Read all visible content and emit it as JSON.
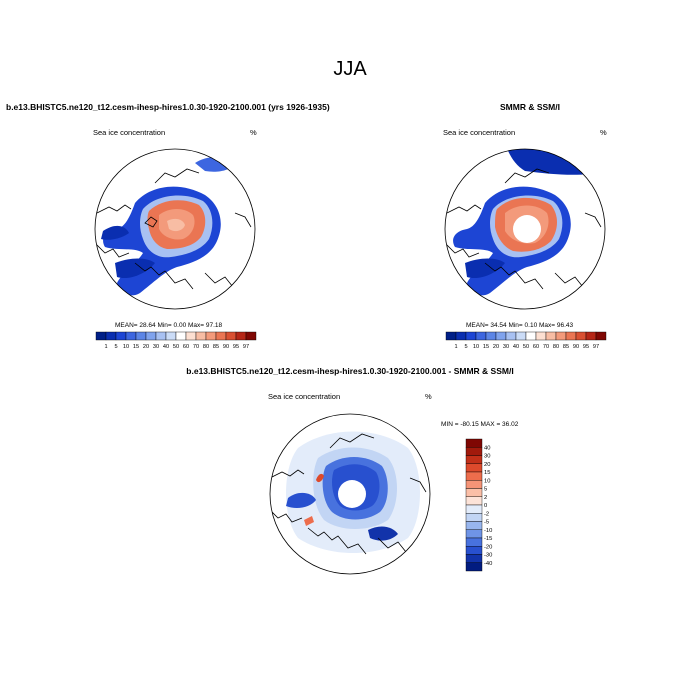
{
  "figure": {
    "season_title": "JJA",
    "model_panel_title": "b.e13.BHISTC5.ne120_t12.cesm-ihesp-hires1.0.30-1920-2100.001 (yrs 1926-1935)",
    "obs_panel_title": "SMMR & SSM/I",
    "diff_panel_title": "b.e13.BHISTC5.ne120_t12.cesm-ihesp-hires1.0.30-1920-2100.001 - SMMR & SSM/I"
  },
  "panels": {
    "model": {
      "left_label": "Sea ice concentration",
      "right_label": "%",
      "stats": "MEAN=  28.64  Min=   0.00  Max=  97.18"
    },
    "obs": {
      "left_label": "Sea ice concentration",
      "right_label": "%",
      "stats": "MEAN=  34.54  Min=   0.10  Max=  96.43"
    },
    "diff": {
      "left_label": "Sea ice concentration",
      "right_label": "%",
      "stats": "MIN = -80.15 MAX =  36.02"
    }
  },
  "colorbars": {
    "concentration": {
      "labels": [
        "1",
        "5",
        "10",
        "15",
        "20",
        "30",
        "40",
        "50",
        "60",
        "70",
        "80",
        "85",
        "90",
        "95",
        "97"
      ],
      "colors": [
        "#001f87",
        "#0a2eb0",
        "#1d45d4",
        "#3d66e0",
        "#5c85e6",
        "#80a3ed",
        "#a8c1f2",
        "#cbdcf7",
        "#ffffff",
        "#fde0d2",
        "#f8bda4",
        "#f39a7b",
        "#ea7553",
        "#d95032",
        "#b52616",
        "#7f0703"
      ]
    },
    "difference": {
      "labels": [
        "40",
        "30",
        "20",
        "15",
        "10",
        "5",
        "2",
        "0",
        "-2",
        "-5",
        "-10",
        "-15",
        "-20",
        "-30",
        "-40"
      ],
      "colors": [
        "#7f0703",
        "#a11a0c",
        "#c23019",
        "#dd4a2c",
        "#ed6d4c",
        "#f59477",
        "#fbbfa7",
        "#fde3d8",
        "#e3ecfa",
        "#c2d5f4",
        "#98b6ee",
        "#6f94e6",
        "#4872de",
        "#2850cf",
        "#1233aa",
        "#021c80"
      ]
    }
  }
}
